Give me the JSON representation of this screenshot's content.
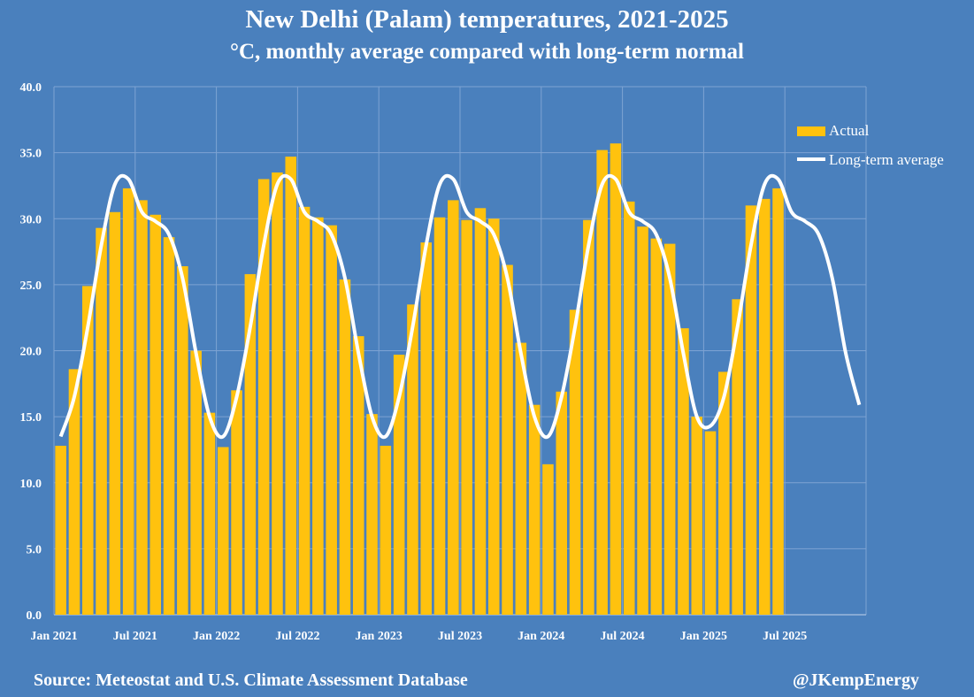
{
  "chart_data": {
    "type": "bar",
    "title": "New Delhi (Palam) temperatures, 2021-2025",
    "subtitle": "°C, monthly average compared with long-term normal",
    "ylim": [
      0,
      40
    ],
    "y_ticks": [
      "0.0",
      "5.0",
      "10.0",
      "15.0",
      "20.0",
      "25.0",
      "30.0",
      "35.0",
      "40.0"
    ],
    "x_ticks": [
      "Jan 2021",
      "Jul 2021",
      "Jan 2022",
      "Jul 2022",
      "Jan 2023",
      "Jul 2023",
      "Jan 2024",
      "Jul 2024",
      "Jan 2025",
      "Jul 2025"
    ],
    "grid": true,
    "legend_position": "top-right",
    "months_total": 60,
    "series": [
      {
        "name": "Actual",
        "type": "bar",
        "color": "#ffc20e",
        "values": [
          12.8,
          18.6,
          24.9,
          29.3,
          30.5,
          32.3,
          31.4,
          30.3,
          28.6,
          26.4,
          20.0,
          15.3,
          12.7,
          17.0,
          25.8,
          33.0,
          33.5,
          34.7,
          30.9,
          30.1,
          29.5,
          25.4,
          21.1,
          15.2,
          12.8,
          19.7,
          23.5,
          28.2,
          30.1,
          31.4,
          29.9,
          30.8,
          30.0,
          26.5,
          20.6,
          15.9,
          11.4,
          16.9,
          23.1,
          29.9,
          35.2,
          35.7,
          31.3,
          29.4,
          28.5,
          28.1,
          21.7,
          15.0,
          13.9,
          18.4,
          23.9,
          31.0,
          31.5,
          32.3
        ]
      },
      {
        "name": "Long-term average",
        "type": "line",
        "color": "#ffffff",
        "values": [
          13.5,
          16.5,
          21.8,
          28.0,
          32.6,
          33.0,
          30.5,
          29.8,
          28.8,
          25.5,
          19.8,
          15.0,
          13.5,
          16.5,
          21.8,
          28.0,
          32.6,
          33.0,
          30.5,
          29.8,
          28.8,
          25.5,
          19.8,
          15.0,
          13.5,
          16.5,
          21.8,
          28.0,
          32.6,
          33.0,
          30.5,
          29.8,
          28.8,
          25.5,
          19.8,
          15.0,
          13.5,
          16.5,
          21.8,
          28.0,
          32.6,
          33.0,
          30.5,
          29.8,
          28.8,
          25.5,
          19.8,
          15.0,
          14.3,
          16.5,
          21.8,
          28.0,
          32.6,
          33.0,
          30.5,
          29.8,
          28.8,
          25.5,
          19.8,
          15.9
        ]
      }
    ]
  },
  "footer": {
    "source": "Source: Meteostat and U.S. Climate Assessment Database",
    "handle": "@JKempEnergy"
  }
}
